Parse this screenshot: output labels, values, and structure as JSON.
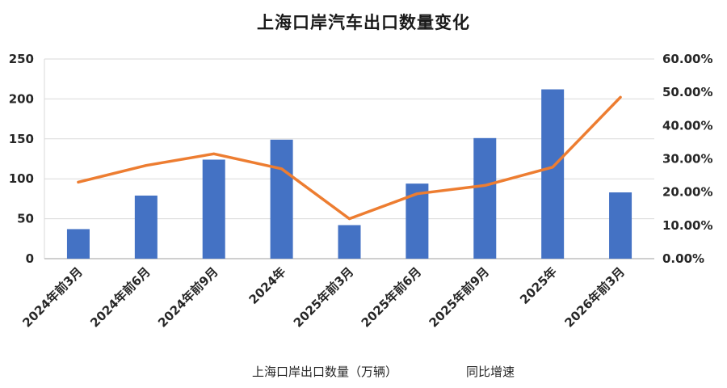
{
  "chart_data": {
    "type": "bar+line",
    "title": "上海口岸汽车出口数量变化",
    "categories": [
      "2024年前3月",
      "2024年前6月",
      "2024年前9月",
      "2024年",
      "2025年前3月",
      "2025年前6月",
      "2025年前9月",
      "2025年",
      "2026年前3月"
    ],
    "series": [
      {
        "name": "上海口岸出口数量（万辆）",
        "type": "bar",
        "axis": "left",
        "values": [
          37,
          79,
          124,
          149,
          42,
          94,
          151,
          212,
          83
        ]
      },
      {
        "name": "同比增速",
        "type": "line",
        "axis": "right",
        "unit": "%",
        "values": [
          23,
          28,
          31.5,
          27,
          12,
          19.5,
          22,
          27.5,
          48.5
        ]
      }
    ],
    "left_axis": {
      "min": 0,
      "max": 250,
      "ticks": [
        "250",
        "200",
        "150",
        "100",
        "50",
        "0"
      ]
    },
    "right_axis": {
      "min": 0,
      "max": 60,
      "ticks": [
        "60.00%",
        "50.00%",
        "40.00%",
        "30.00%",
        "20.00%",
        "10.00%",
        "0.00%"
      ]
    },
    "legend": [
      "上海口岸出口数量（万辆）",
      "同比增速"
    ],
    "legend_position": "bottom",
    "grid": true,
    "colors": {
      "bar": "#4472C4",
      "line": "#ED7D31",
      "grid": "#D9D9D9",
      "axis": "#BFBFBF",
      "text": "#262626"
    }
  }
}
